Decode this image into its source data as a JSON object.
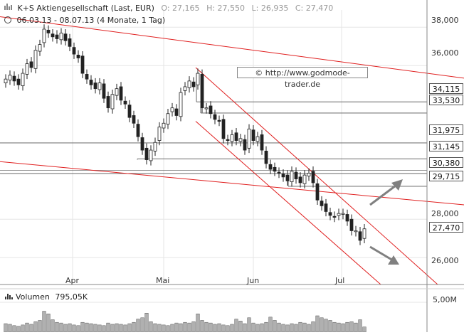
{
  "header": {
    "title": "K+S Aktiengesellschaft (Last, EUR)",
    "open": "O: 27,165",
    "high": "H: 27,550",
    "low": "L: 26,935",
    "close": "C: 27,470",
    "range": "06.03.13 - 08.07.13 (4 Monate, 1 Tag)"
  },
  "watermark": "© http://www.godmode-trader.de",
  "volume_label": "Volumen",
  "volume_value": "795,05K",
  "volume_axis_label": "5,00M",
  "colors": {
    "channel": "#e02020",
    "level_line": "#555555",
    "arrow": "#808080",
    "candle": "#222222",
    "volume_bar": "#b0b0b0"
  },
  "chart_data": {
    "type": "candlestick",
    "title": "K+S Aktiengesellschaft (Last, EUR)",
    "x_tick_labels": [
      "Apr",
      "Mai",
      "Jun",
      "Jul"
    ],
    "y_tick_labels": [
      "38,000",
      "36,000",
      "28,000",
      "26,000"
    ],
    "ylim": [
      24.6,
      38.9
    ],
    "grid": true,
    "levels": [
      {
        "label": "34,115",
        "value": 34.115
      },
      {
        "label": "33,530",
        "value": 33.53
      },
      {
        "label": "31,975",
        "value": 31.975
      },
      {
        "label": "31,145",
        "value": 31.145
      },
      {
        "label": "30,380",
        "value": 30.38
      },
      {
        "label": "29,715",
        "value": 29.715
      },
      {
        "label": "27,470",
        "value": 27.47
      }
    ],
    "closes": [
      35.3,
      35.5,
      35.2,
      35.0,
      35.6,
      36.1,
      35.9,
      36.8,
      37.1,
      37.9,
      37.7,
      37.5,
      37.4,
      37.7,
      37.3,
      37.0,
      36.6,
      36.4,
      35.6,
      35.3,
      35.0,
      34.8,
      35.1,
      34.3,
      33.8,
      34.5,
      34.8,
      34.2,
      34.0,
      33.3,
      33.0,
      32.3,
      31.6,
      31.1,
      31.6,
      32.0,
      32.8,
      33.0,
      33.5,
      33.8,
      33.4,
      34.6,
      34.9,
      35.2,
      34.9,
      35.6,
      33.8,
      33.8,
      33.5,
      33.2,
      33.1,
      32.2,
      32.1,
      32.4,
      32.1,
      32.2,
      31.6,
      32.7,
      32.1,
      32.3,
      31.6,
      30.9,
      30.6,
      30.5,
      30.4,
      30.2,
      30.0,
      30.5,
      30.1,
      29.9,
      30.3,
      30.4,
      29.9,
      29.0,
      28.7,
      28.4,
      28.2,
      28.1,
      28.3,
      28.3,
      27.9,
      27.4,
      27.4,
      26.9,
      27.5
    ],
    "volumes": [
      1.3,
      1.2,
      1.0,
      0.9,
      1.1,
      1.4,
      1.2,
      1.6,
      1.8,
      3.2,
      2.8,
      1.9,
      1.5,
      1.4,
      1.2,
      1.3,
      1.1,
      1.0,
      1.5,
      1.4,
      1.3,
      1.2,
      1.1,
      1.0,
      1.4,
      1.2,
      1.3,
      1.2,
      1.1,
      1.3,
      1.5,
      2.0,
      2.2,
      2.9,
      1.6,
      1.3,
      1.2,
      1.1,
      1.0,
      1.2,
      1.4,
      1.3,
      1.5,
      1.4,
      1.6,
      2.8,
      1.8,
      1.5,
      1.4,
      1.2,
      1.3,
      1.1,
      1.0,
      1.2,
      2.0,
      1.7,
      1.3,
      2.2,
      1.4,
      1.2,
      1.3,
      1.5,
      2.3,
      1.8,
      1.4,
      1.2,
      1.1,
      1.3,
      1.2,
      1.5,
      1.4,
      1.2,
      1.6,
      2.5,
      2.2,
      2.0,
      1.8,
      1.5,
      1.4,
      1.3,
      1.5,
      1.6,
      1.4,
      1.9,
      0.8
    ]
  }
}
